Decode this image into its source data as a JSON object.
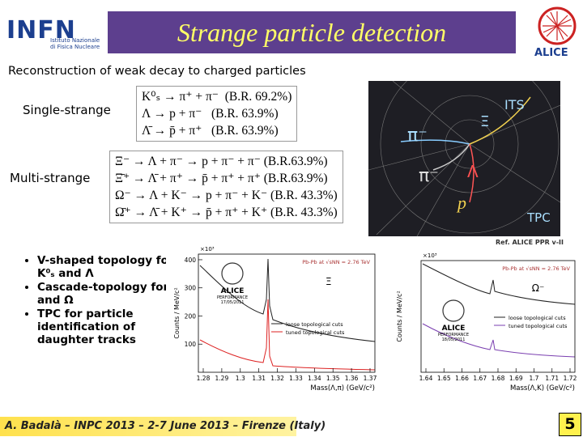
{
  "header": {
    "title": "Strange particle detection",
    "left_logo": {
      "name": "INFN",
      "subtitle_lines": [
        "Istituto Nazionale",
        "di Fisica Nucleare"
      ]
    },
    "right_logo": "ALICE"
  },
  "intro": "Reconstruction of weak decay to charged particles",
  "decays": {
    "single": {
      "label": "Single-strange",
      "lines": [
        "K⁰ₛ → π⁺ + π⁻  (B.R. 69.2%)",
        "Λ → p + π⁻   (B.R. 63.9%)",
        "Λ̄ → p̄ + π⁺   (B.R. 63.9%)"
      ]
    },
    "multi": {
      "label": "Multi-strange",
      "lines": [
        "Ξ⁻ → Λ + π⁻ → p + π⁻ + π⁻ (B.R.63.9%)",
        "Ξ̄⁺ → Λ̄ + π⁺ → p̄ + π⁺ + π⁺ (B.R.63.9%)",
        "Ω⁻ → Λ + K⁻ → p + π⁻ + K⁻ (B.R. 43.3%)",
        "Ω̄⁺ → Λ̄ + K⁺ → p̄ + π⁺ + K⁺ (B.R. 43.3%)"
      ]
    }
  },
  "event_display": {
    "its": "ITS",
    "xi": "Ξ",
    "pion_1": "π⁻",
    "pion_2": "π⁻",
    "lambda": "Λ",
    "proton": "p",
    "tpc": "TPC",
    "reference": "Ref. ALICE PPR v-II"
  },
  "bullets": [
    "V-shaped topology for K⁰ₛ and Λ",
    "Cascade-topology for Ξ and Ω",
    "TPC for particle identification of daughter tracks"
  ],
  "plots": [
    {
      "y_label": "Counts / MeV/c²",
      "y_multiplier": "×10³",
      "y_ticks": [
        "100",
        "200",
        "300",
        "400"
      ],
      "x_ticks": [
        "1.28",
        "1.29",
        "1.3",
        "1.31",
        "1.32",
        "1.33",
        "1.34",
        "1.35",
        "1.36",
        "1.37"
      ],
      "x_label": "Mass(Λ,π) (GeV/c²)",
      "legend": [
        "loose topological cuts",
        "tuned topological cuts"
      ],
      "system": "Pb-Pb at √sNN = 2.76 TeV",
      "particle": "Ξ",
      "logo": {
        "name": "ALICE",
        "caption": "PERFORMANCE",
        "date": "17/05/2011"
      }
    },
    {
      "y_label": "Counts / MeV/c²",
      "y_multiplier": "×10³",
      "x_ticks": [
        "1.64",
        "1.65",
        "1.66",
        "1.67",
        "1.68",
        "1.69",
        "1.7",
        "1.71",
        "1.72"
      ],
      "x_label": "Mass(Λ,K) (GeV/c²)",
      "legend": [
        "loose topological cuts",
        "tuned topological cuts"
      ],
      "system": "Pb-Pb at √sNN = 2.76 TeV",
      "particle": "Ω⁻",
      "logo": {
        "name": "ALICE",
        "caption": "PERFORMANCE",
        "date": "18/05/2011"
      }
    }
  ],
  "footer": {
    "text": "A. Badalà – INPC 2013 – 2-7 June 2013 – Firenze (Italy)",
    "page": "5"
  }
}
